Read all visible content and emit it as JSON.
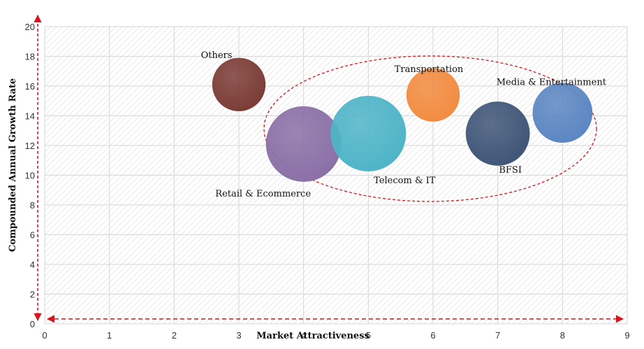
{
  "chart_data": {
    "type": "scatter",
    "subtype": "bubble",
    "xlabel": "Market Attractiveness",
    "ylabel": "Compounded Annual Growth Rate",
    "xlim": [
      0,
      9
    ],
    "ylim": [
      0,
      20
    ],
    "x_ticks": [
      0,
      1,
      2,
      3,
      4,
      5,
      6,
      7,
      8,
      9
    ],
    "y_ticks": [
      0,
      2,
      4,
      6,
      8,
      10,
      12,
      14,
      16,
      18,
      20
    ],
    "grid": true,
    "series": [
      {
        "name": "Others",
        "x": 3,
        "y": 16.1,
        "size": 0.5,
        "color": "#7b3b35"
      },
      {
        "name": "Retail & Ecommerce",
        "x": 4,
        "y": 12.1,
        "size": 1.0,
        "color": "#8a6fa6"
      },
      {
        "name": "Telecom & IT",
        "x": 5,
        "y": 12.8,
        "size": 1.0,
        "color": "#4eb4c7"
      },
      {
        "name": "Transportation",
        "x": 6,
        "y": 15.4,
        "size": 0.5,
        "color": "#f28b40"
      },
      {
        "name": "BFSI",
        "x": 7,
        "y": 12.8,
        "size": 0.72,
        "color": "#3f5577"
      },
      {
        "name": "Media & Entertainment",
        "x": 8,
        "y": 14.2,
        "size": 0.63,
        "color": "#5b86c2"
      }
    ],
    "highlight_ellipse_color": "#d9141e",
    "axis_arrow_color": "#d9141e"
  }
}
